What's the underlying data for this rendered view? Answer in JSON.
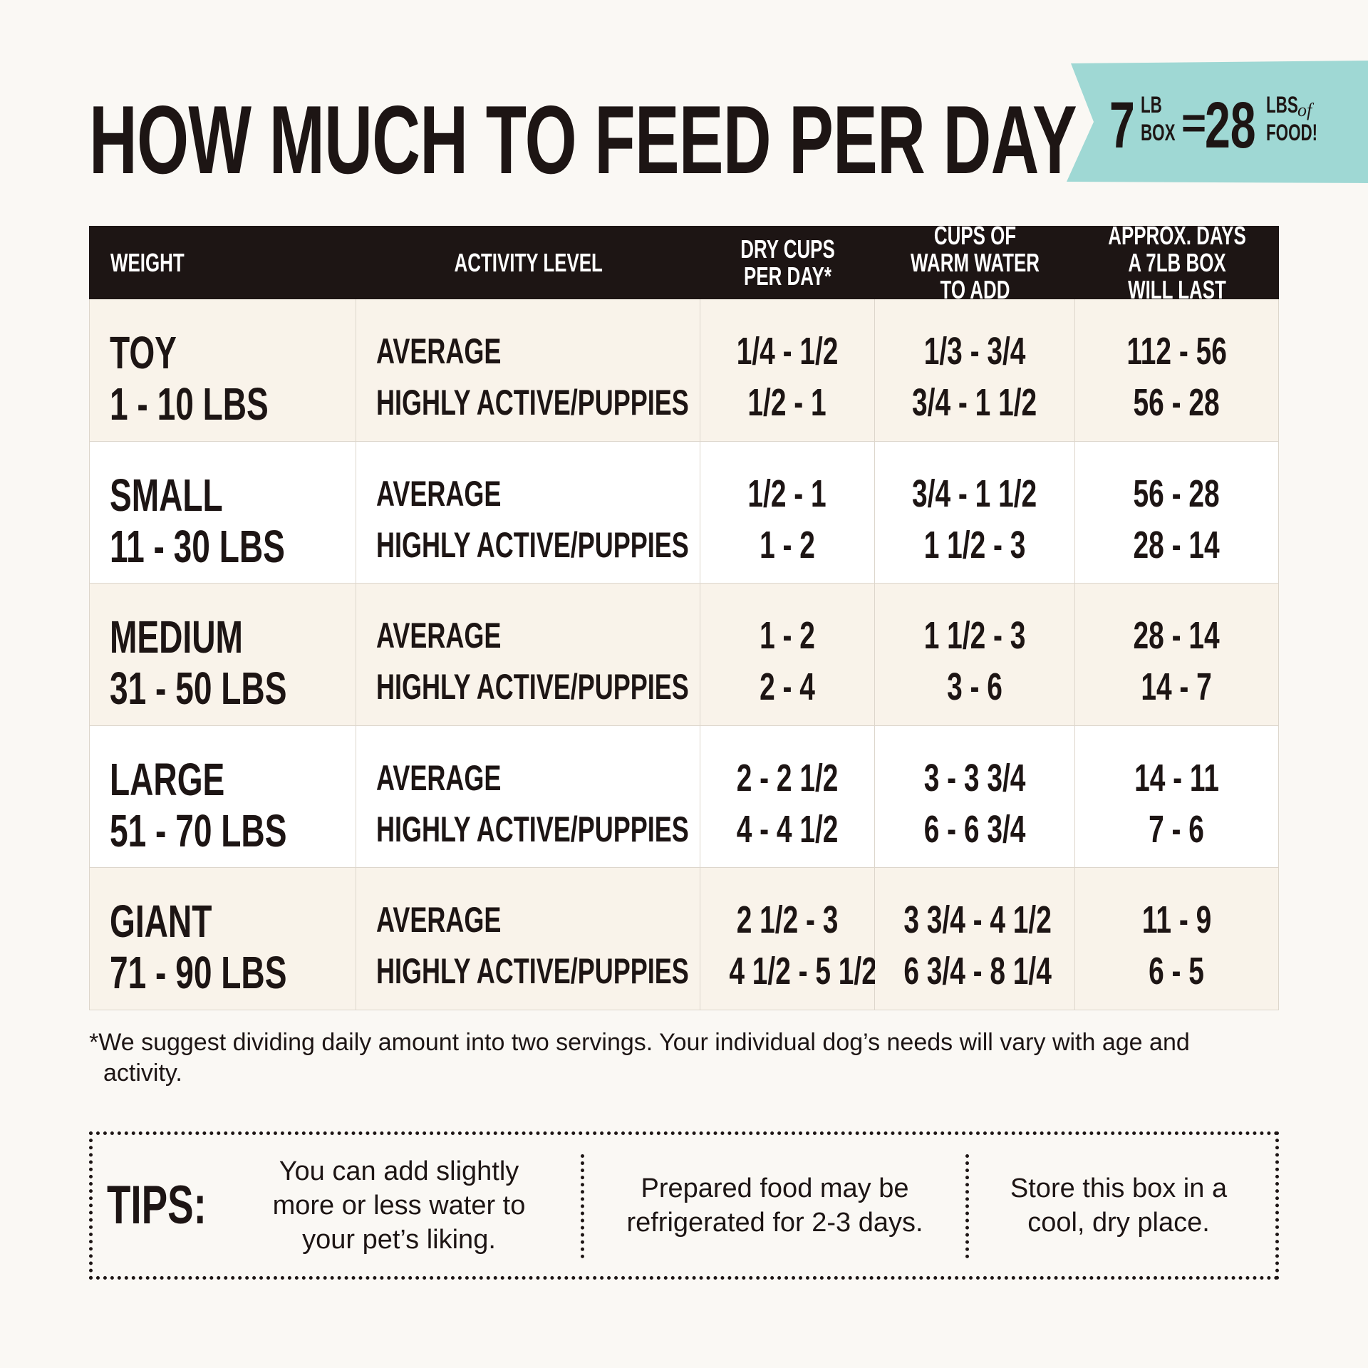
{
  "header": {
    "title": "HOW MUCH TO FEED PER DAY"
  },
  "badge": {
    "box_weight": "7",
    "box_unit_top": "LB",
    "box_unit_bottom": "BOX",
    "equals": "=",
    "food_weight": "28",
    "food_unit_top": "LBS",
    "food_unit_of": "of",
    "food_unit_bottom": "FOOD!"
  },
  "table": {
    "columns": [
      "WEIGHT",
      "ACTIVITY LEVEL",
      "DRY CUPS PER DAY*",
      "CUPS OF WARM WATER TO ADD",
      "APPROX. DAYS A 7LB BOX WILL LAST"
    ],
    "rows": [
      {
        "size": "TOY",
        "weight": "1 - 10 LBS",
        "activity": [
          "AVERAGE",
          "HIGHLY ACTIVE/PUPPIES"
        ],
        "dry_cups": [
          "1/4 - 1/2",
          "1/2 - 1"
        ],
        "water_cups": [
          "1/3 - 3/4",
          "3/4 - 1 1/2"
        ],
        "days": [
          "112 - 56",
          "56 - 28"
        ]
      },
      {
        "size": "SMALL",
        "weight": "11 - 30 LBS",
        "activity": [
          "AVERAGE",
          "HIGHLY ACTIVE/PUPPIES"
        ],
        "dry_cups": [
          "1/2 - 1",
          "1 - 2"
        ],
        "water_cups": [
          "3/4 - 1 1/2",
          "1 1/2 - 3"
        ],
        "days": [
          "56 - 28",
          "28 - 14"
        ]
      },
      {
        "size": "MEDIUM",
        "weight": "31 - 50 LBS",
        "activity": [
          "AVERAGE",
          "HIGHLY ACTIVE/PUPPIES"
        ],
        "dry_cups": [
          "1 - 2",
          "2 - 4"
        ],
        "water_cups": [
          "1 1/2 - 3",
          "3 - 6"
        ],
        "days": [
          "28 - 14",
          "14 - 7"
        ]
      },
      {
        "size": "LARGE",
        "weight": "51 - 70 LBS",
        "activity": [
          "AVERAGE",
          "HIGHLY ACTIVE/PUPPIES"
        ],
        "dry_cups": [
          "2 - 2 1/2",
          "4 - 4 1/2"
        ],
        "water_cups": [
          "3 - 3 3/4",
          "6 - 6 3/4"
        ],
        "days": [
          "14 - 11",
          "7 - 6"
        ]
      },
      {
        "size": "GIANT",
        "weight": "71 - 90 LBS",
        "activity": [
          "AVERAGE",
          "HIGHLY ACTIVE/PUPPIES"
        ],
        "dry_cups": [
          "2 1/2 - 3",
          "4 1/2 - 5 1/2"
        ],
        "water_cups": [
          "3 3/4 - 4 1/2",
          "6 3/4 - 8 1/4"
        ],
        "days": [
          "11 - 9",
          "6 - 5"
        ]
      }
    ]
  },
  "footnote": "*We suggest dividing daily amount into two servings. Your individual dog’s needs will vary with age and activity.",
  "tips": {
    "label": "TIPS:",
    "items": [
      "You can add slightly more or less water to your pet’s liking.",
      "Prepared food may be refrigerated for 2-3 days.",
      "Store this box in a cool, dry place."
    ]
  }
}
